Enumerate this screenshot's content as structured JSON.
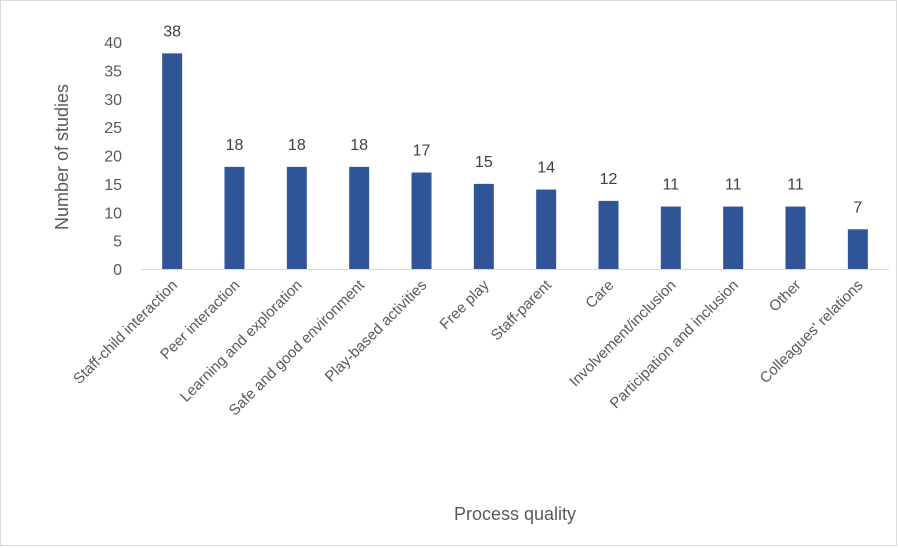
{
  "chart_data": {
    "type": "bar",
    "title": "",
    "xlabel": "Process quality",
    "ylabel": "Number  of studies",
    "ylim": [
      0,
      40
    ],
    "yticks": [
      0,
      5,
      10,
      15,
      20,
      25,
      30,
      35,
      40
    ],
    "categories": [
      "Staff-child interaction",
      "Peer interaction",
      "Learning and exploration",
      "Safe and good environment",
      "Play-based activities",
      "Free play",
      "Staff-parent",
      "Care",
      "Involvement/inclusion",
      "Participation and inclusion",
      "Other",
      "Colleagues' relations"
    ],
    "values": [
      38,
      18,
      18,
      18,
      17,
      15,
      14,
      12,
      11,
      11,
      11,
      7
    ],
    "data_labels": true,
    "grid": false,
    "legend": "none",
    "bar_color": "#2f5597",
    "axis_color": "#d9d9d9",
    "text_color": "#595959"
  }
}
